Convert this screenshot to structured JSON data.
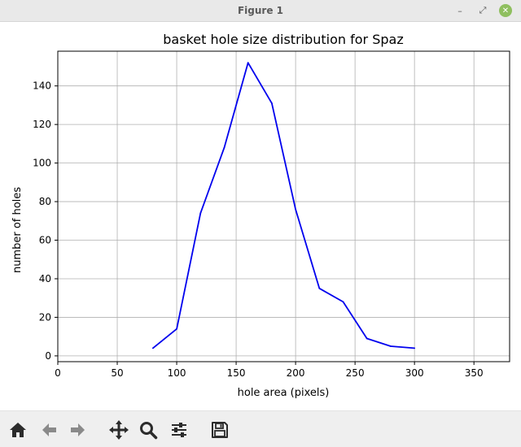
{
  "window": {
    "title": "Figure 1",
    "minimize_label": "–",
    "maximize_label": "⤢",
    "close_label": "✕"
  },
  "toolbar": {
    "tools": [
      {
        "name": "home-icon",
        "tip": "Reset original view"
      },
      {
        "name": "back-icon",
        "tip": "Back to previous view"
      },
      {
        "name": "forward-icon",
        "tip": "Forward to next view"
      },
      {
        "name": "pan-icon",
        "tip": "Pan axes"
      },
      {
        "name": "zoom-icon",
        "tip": "Zoom to rectangle"
      },
      {
        "name": "configure-subplots-icon",
        "tip": "Configure subplots"
      },
      {
        "name": "save-icon",
        "tip": "Save the figure"
      }
    ]
  },
  "chart_data": {
    "type": "line",
    "title": "basket hole size distribution for Spaz",
    "xlabel": "hole area (pixels)",
    "ylabel": "number of holes",
    "xlim": [
      0,
      380
    ],
    "ylim": [
      -3,
      158
    ],
    "xticks": [
      0,
      50,
      100,
      150,
      200,
      250,
      300,
      350
    ],
    "yticks": [
      0,
      20,
      40,
      60,
      80,
      100,
      120,
      140
    ],
    "grid": true,
    "series": [
      {
        "color": "#0000ee",
        "x": [
          80,
          100,
          120,
          140,
          160,
          180,
          200,
          220,
          240,
          260,
          280,
          300
        ],
        "y": [
          4,
          14,
          74,
          108,
          152,
          131,
          76,
          35,
          28,
          9,
          5,
          4
        ]
      }
    ]
  }
}
